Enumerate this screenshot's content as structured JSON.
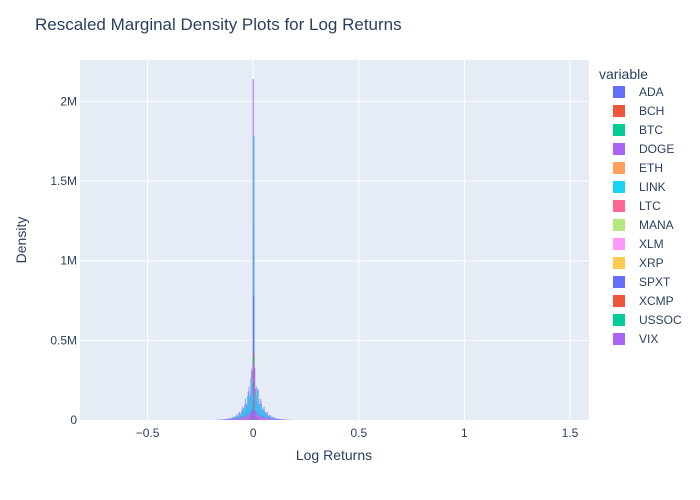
{
  "chart_data": {
    "type": "bar",
    "title": "Rescaled Marginal Density Plots for Log Returns",
    "xlabel": "Log Returns",
    "ylabel": "Density",
    "xlim": [
      -0.82,
      1.59
    ],
    "ylim": [
      0,
      2260000
    ],
    "xticks": [
      {
        "value": -0.5,
        "label": "−0.5"
      },
      {
        "value": 0,
        "label": "0"
      },
      {
        "value": 0.5,
        "label": "0.5"
      },
      {
        "value": 1,
        "label": "1"
      },
      {
        "value": 1.5,
        "label": "1.5"
      }
    ],
    "yticks": [
      {
        "value": 0,
        "label": "0"
      },
      {
        "value": 500000,
        "label": "0.5M"
      },
      {
        "value": 1000000,
        "label": "1M"
      },
      {
        "value": 1500000,
        "label": "1.5M"
      },
      {
        "value": 2000000,
        "label": "2M"
      }
    ],
    "grid": true,
    "barmode": "overlay",
    "legend_title": "variable",
    "legend_position": "right",
    "series": [
      {
        "name": "ADA",
        "color": "#636efa",
        "peak": 410000,
        "scale": 0.03
      },
      {
        "name": "BCH",
        "color": "#EF553B",
        "peak": 1220000,
        "scale": 0.028
      },
      {
        "name": "BTC",
        "color": "#00cc96",
        "peak": 330000,
        "scale": 0.022
      },
      {
        "name": "DOGE",
        "color": "#ab63fa",
        "peak": 2140000,
        "scale": 0.032
      },
      {
        "name": "ETH",
        "color": "#FFA15A",
        "peak": 300000,
        "scale": 0.025
      },
      {
        "name": "LINK",
        "color": "#19d3f3",
        "peak": 1780000,
        "scale": 0.03
      },
      {
        "name": "LTC",
        "color": "#FF6692",
        "peak": 290000,
        "scale": 0.026
      },
      {
        "name": "MANA",
        "color": "#B6E880",
        "peak": 260000,
        "scale": 0.034
      },
      {
        "name": "XLM",
        "color": "#FF97FF",
        "peak": 280000,
        "scale": 0.028
      },
      {
        "name": "XRP",
        "color": "#FECB52",
        "peak": 270000,
        "scale": 0.03
      },
      {
        "name": "SPXT",
        "color": "#636efa",
        "peak": 780000,
        "scale": 0.008
      },
      {
        "name": "XCMP",
        "color": "#EF553B",
        "peak": 420000,
        "scale": 0.01
      },
      {
        "name": "USSOC",
        "color": "#00cc96",
        "peak": 400000,
        "scale": 0.006
      },
      {
        "name": "VIX",
        "color": "#ab63fa",
        "peak": 360000,
        "scale": 0.045
      }
    ]
  }
}
